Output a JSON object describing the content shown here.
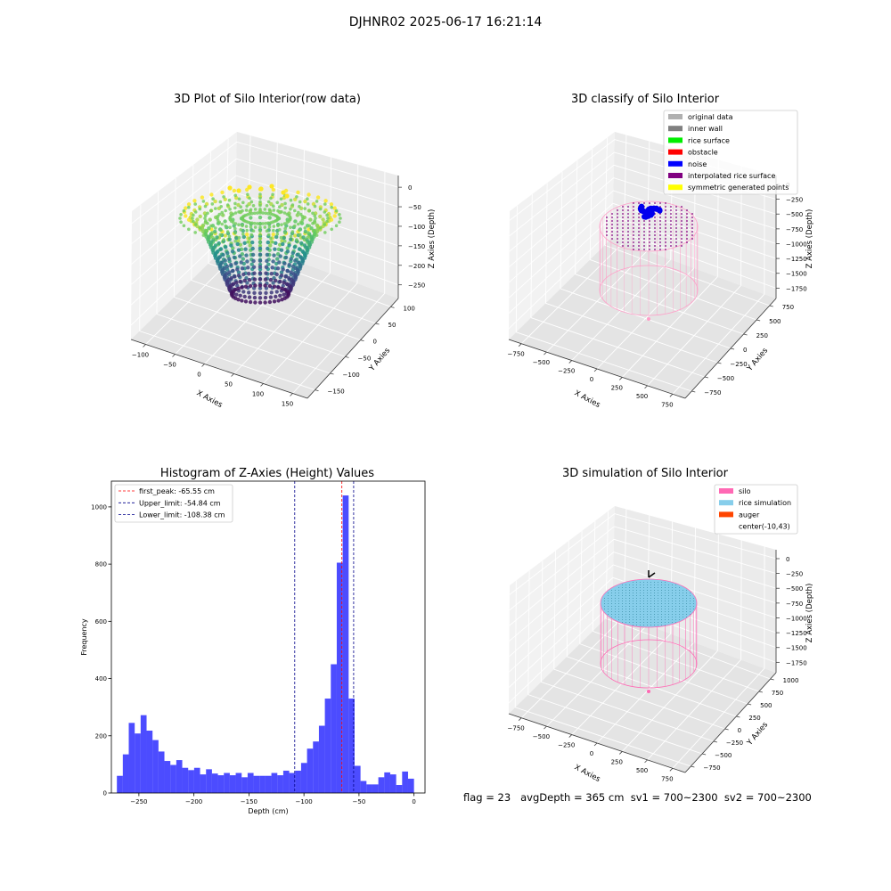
{
  "suptitle": "DJHNR02 2025-06-17 16:21:14",
  "footer": "flag = 23   avgDepth = 365 cm  sv1 = 700~2300  sv2 = 700~2300",
  "chart_data": [
    {
      "type": "scatter",
      "title": "3D Plot of Silo Interior(row data)",
      "xlabel": "X Axies",
      "ylabel": "Y Axies",
      "zlabel": "Z Axies (Depth)",
      "x_ticks": [
        "−100",
        "−50",
        "0",
        "50",
        "100",
        "150"
      ],
      "y_ticks": [
        "−150",
        "−100",
        "−50",
        "0",
        "50",
        "100"
      ],
      "z_ticks": [
        "0",
        "−50",
        "−100",
        "−150",
        "−200",
        "−250"
      ],
      "xlim": [
        -110,
        150
      ],
      "ylim": [
        -160,
        110
      ],
      "zlim": [
        -280,
        10
      ],
      "colormap": "viridis (by depth)"
    },
    {
      "type": "scatter",
      "title": "3D classify of Silo Interior",
      "xlabel": "X Axies",
      "ylabel": "Y Axies",
      "zlabel": "Z Axies (Depth)",
      "x_ticks": [
        "−750",
        "−500",
        "−250",
        "0",
        "250",
        "500",
        "750"
      ],
      "y_ticks": [
        "−750",
        "−500",
        "−250",
        "0",
        "250",
        "500",
        "750"
      ],
      "z_ticks": [
        "0",
        "−250",
        "−500",
        "−750",
        "−1000",
        "−1250",
        "−1500",
        "−1750"
      ],
      "legend": [
        {
          "label": "original data",
          "color": "#b0b0b0"
        },
        {
          "label": "inner wall",
          "color": "#808080"
        },
        {
          "label": "rice surface",
          "color": "#00ee00"
        },
        {
          "label": "obstacle",
          "color": "#ff0000"
        },
        {
          "label": "noise",
          "color": "#0000ff"
        },
        {
          "label": "interpolated rice surface",
          "color": "#800080"
        },
        {
          "label": "symmetric generated points",
          "color": "#ffff00"
        }
      ],
      "legend_position": "upper right"
    },
    {
      "type": "bar",
      "title": "Histogram of Z-Axies (Height) Values",
      "xlabel": "Depth (cm)",
      "ylabel": "Frequency",
      "xlim": [
        -275,
        10
      ],
      "ylim": [
        0,
        1090
      ],
      "bin_width": 5.4,
      "bin_start": -270,
      "bar_color": "#0000ff",
      "values": [
        60,
        135,
        245,
        208,
        272,
        218,
        185,
        145,
        112,
        98,
        115,
        88,
        80,
        88,
        65,
        83,
        68,
        62,
        70,
        62,
        70,
        55,
        70,
        60,
        60,
        60,
        70,
        62,
        78,
        70,
        78,
        105,
        155,
        180,
        235,
        330,
        450,
        805,
        1040,
        330,
        95,
        42,
        30,
        30,
        55,
        72,
        65,
        28,
        75,
        50
      ],
      "x_ticks": [
        -250,
        -200,
        -150,
        -100,
        -50,
        0
      ],
      "y_ticks": [
        0,
        200,
        400,
        600,
        800,
        1000
      ],
      "lines": [
        {
          "label": "first_peak: -65.55 cm",
          "x": -65.55,
          "color": "#ff0000",
          "style": "dashed"
        },
        {
          "label": "Upper_limit: -54.84 cm",
          "x": -54.84,
          "color": "#00008b",
          "style": "dashed"
        },
        {
          "label": "Lower_limit: -108.38 cm",
          "x": -108.38,
          "color": "#00008b",
          "style": "dashed"
        }
      ],
      "legend_position": "upper left"
    },
    {
      "type": "scatter",
      "title": "3D simulation of Silo Interior",
      "xlabel": "X Axies",
      "ylabel": "Y Axies",
      "zlabel": "Z Axies (Depth)",
      "x_ticks": [
        "−750",
        "−500",
        "−250",
        "0",
        "250",
        "500",
        "750"
      ],
      "y_ticks": [
        "−750",
        "−500",
        "−250",
        "0",
        "250",
        "500",
        "750",
        "1000"
      ],
      "z_ticks": [
        "0",
        "−250",
        "−500",
        "−750",
        "−1000",
        "−1250",
        "−1500",
        "−1750"
      ],
      "legend": [
        {
          "label": "silo",
          "color": "#ff69b4"
        },
        {
          "label": "rice simulation",
          "color": "#87ceeb"
        },
        {
          "label": "auger",
          "color": "#ff4500"
        },
        {
          "label": "center(-10,43)",
          "color": ""
        }
      ],
      "legend_position": "upper right"
    }
  ]
}
